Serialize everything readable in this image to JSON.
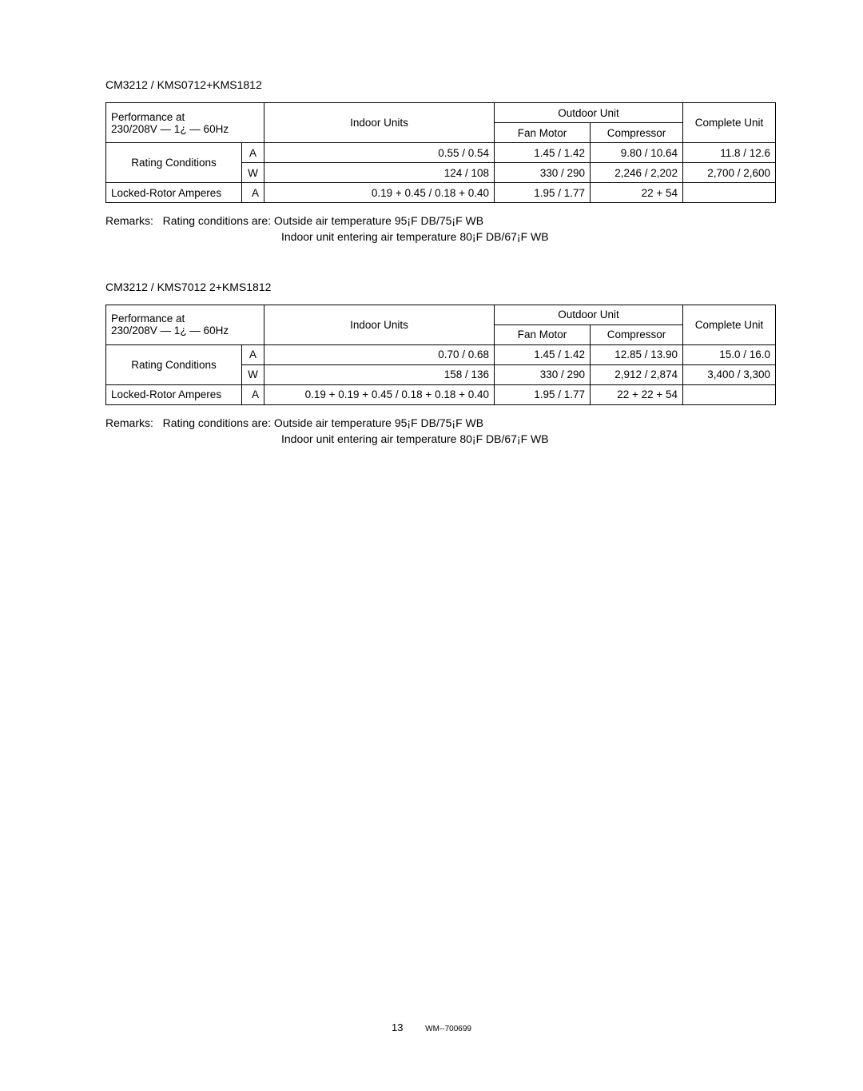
{
  "section1": {
    "model": "CM3212 / KMS0712+KMS1812",
    "perf_line1": "Performance at",
    "perf_line2": "230/208V — 1¿ — 60Hz",
    "indoor_units": "Indoor Units",
    "outdoor_unit": "Outdoor Unit",
    "fan_motor": "Fan Motor",
    "compressor": "Compressor",
    "complete_unit": "Complete Unit",
    "rating_conditions": "Rating Conditions",
    "rowA": {
      "label": "A",
      "indoor": "0.55 / 0.54",
      "fan": "1.45 / 1.42",
      "comp": "9.80 / 10.64",
      "complete": "11.8 / 12.6"
    },
    "rowW": {
      "label": "W",
      "indoor": "124 / 108",
      "fan": "330 / 290",
      "comp": "2,246 / 2,202",
      "complete": "2,700 / 2,600"
    },
    "locked": {
      "label": "Locked-Rotor Amperes",
      "a": "A",
      "indoor": "0.19 + 0.45 / 0.18 + 0.40",
      "fan": "1.95 / 1.77",
      "comp": "22 + 54"
    },
    "remarks_label": "Remarks:",
    "remarks1_a": "Rating conditions are: Outside air temperature  95¡F DB/75¡F WB",
    "remarks1_b": "Indoor unit entering air temperature  80¡F DB/67¡F WB"
  },
  "section2": {
    "model": "CM3212 / KMS7012 2+KMS1812",
    "perf_line1": "Performance at",
    "perf_line2": "230/208V — 1¿ — 60Hz",
    "indoor_units": "Indoor Units",
    "outdoor_unit": "Outdoor Unit",
    "fan_motor": "Fan Motor",
    "compressor": "Compressor",
    "complete_unit": "Complete Unit",
    "rating_conditions": "Rating Conditions",
    "rowA": {
      "label": "A",
      "indoor": "0.70 / 0.68",
      "fan": "1.45 / 1.42",
      "comp": "12.85 / 13.90",
      "complete": "15.0 / 16.0"
    },
    "rowW": {
      "label": "W",
      "indoor": "158 / 136",
      "fan": "330 / 290",
      "comp": "2,912 / 2,874",
      "complete": "3,400 / 3,300"
    },
    "locked": {
      "label": "Locked-Rotor Amperes",
      "a": "A",
      "indoor": "0.19 + 0.19 + 0.45 / 0.18 + 0.18 + 0.40",
      "fan": "1.95 / 1.77",
      "comp": "22 + 22 + 54"
    },
    "remarks_label": "Remarks:",
    "remarks1_a": "Rating conditions are: Outside air temperature  95¡F DB/75¡F WB",
    "remarks1_b": "Indoor unit entering air temperature  80¡F DB/67¡F WB"
  },
  "footer": {
    "page": "13",
    "wm": "WM--700699"
  }
}
